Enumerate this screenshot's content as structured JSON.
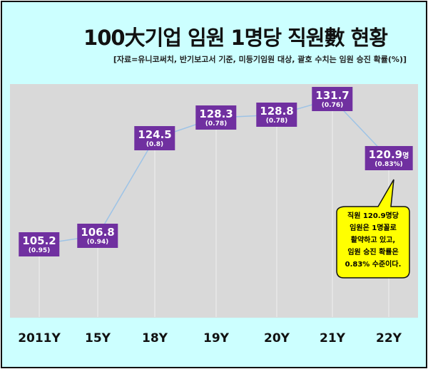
{
  "chart_data": {
    "type": "line",
    "title": "100大기업 임원 1명당 직원數 현황",
    "subtitle": "[자료=유니코써치, 반기보고서 기준, 미등기임원 대상, 괄호 수치는 임원 승진 확률(%)]",
    "categories": [
      "2011Y",
      "15Y",
      "18Y",
      "19Y",
      "20Y",
      "21Y",
      "22Y"
    ],
    "values": [
      105.2,
      106.8,
      124.5,
      128.3,
      128.8,
      131.7,
      120.9
    ],
    "value_labels": [
      "105.2",
      "106.8",
      "124.5",
      "128.3",
      "128.8",
      "131.7",
      "120.9"
    ],
    "percent_labels": [
      "(0.95)",
      "(0.94)",
      "(0.8)",
      "(0.78)",
      "(0.78)",
      "(0.76)",
      "(0.83%)"
    ],
    "last_unit": "명",
    "callout_lines": [
      "직원 120.9명당",
      "임원은 1명꼴로",
      "활약하고 있고,",
      "임원 승진 확률은",
      "0.83% 수준이다."
    ],
    "grid": false,
    "colors": {
      "background": "#ccffff",
      "plot": "#d9d9d9",
      "label_box": "#7030a0",
      "line": "#9dc3e6",
      "callout": "#ffff00"
    }
  }
}
